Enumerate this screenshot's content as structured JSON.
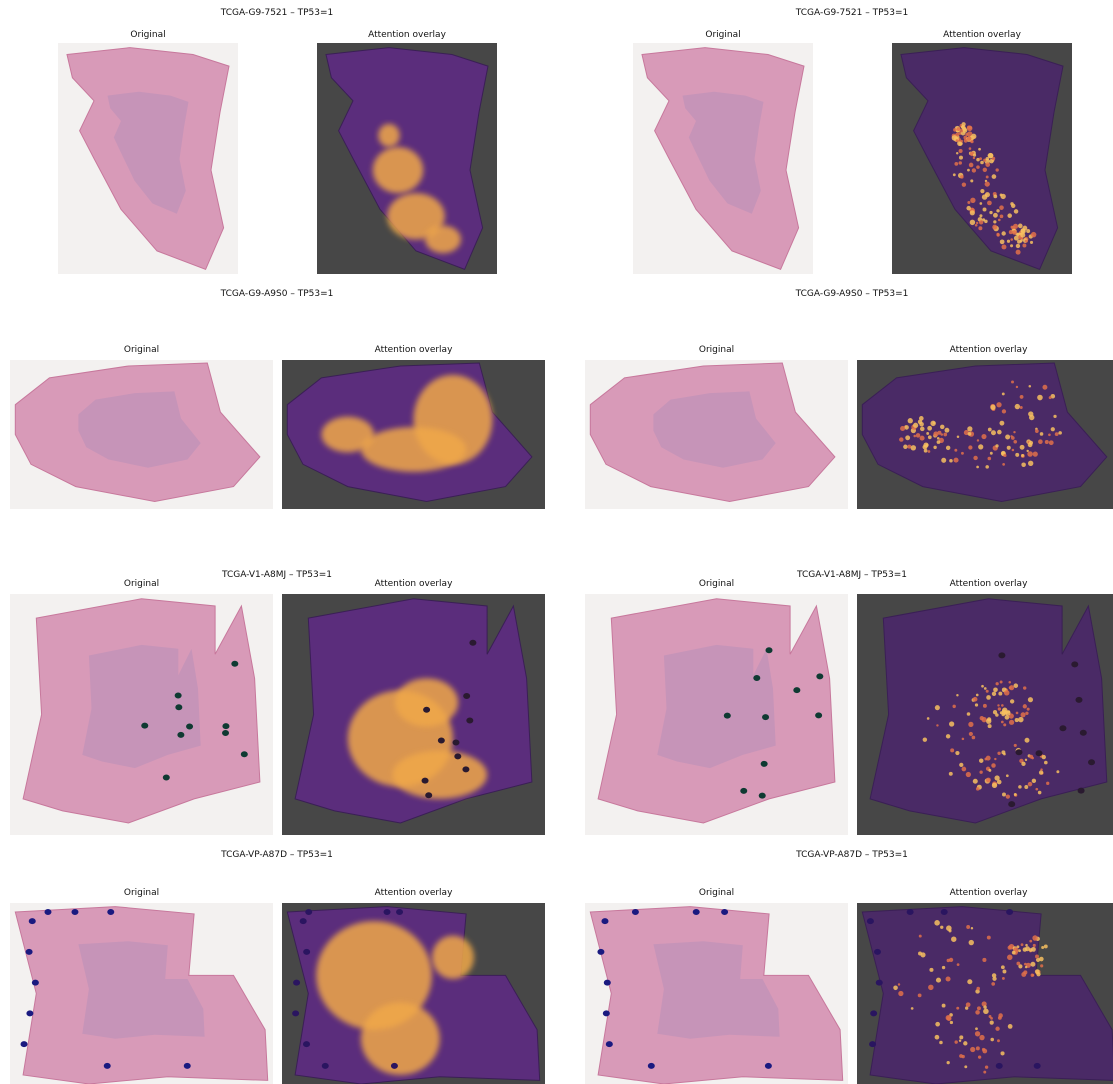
{
  "figures": [
    {
      "title": "TCGA-G9-7521 – TP53=1",
      "subplots": [
        "Original",
        "Attention overlay"
      ]
    },
    {
      "title": "TCGA-G9-7521 – TP53=1",
      "subplots": [
        "Original",
        "Attention overlay"
      ]
    },
    {
      "title": "TCGA-G9-A9S0 – TP53=1",
      "subplots": [
        "Original",
        "Attention overlay"
      ]
    },
    {
      "title": "TCGA-G9-A9S0 – TP53=1",
      "subplots": [
        "Original",
        "Attention overlay"
      ]
    },
    {
      "title": "TCGA-V1-A8MJ – TP53=1",
      "subplots": [
        "Original",
        "Attention overlay"
      ]
    },
    {
      "title": "TCGA-V1-A8MJ – TP53=1",
      "subplots": [
        "Original",
        "Attention overlay"
      ]
    },
    {
      "title": "TCGA-VP-A87D – TP53=1",
      "subplots": [
        "Original",
        "Attention overlay"
      ]
    },
    {
      "title": "TCGA-VP-A87D – TP53=1",
      "subplots": [
        "Original",
        "Attention overlay"
      ]
    }
  ]
}
